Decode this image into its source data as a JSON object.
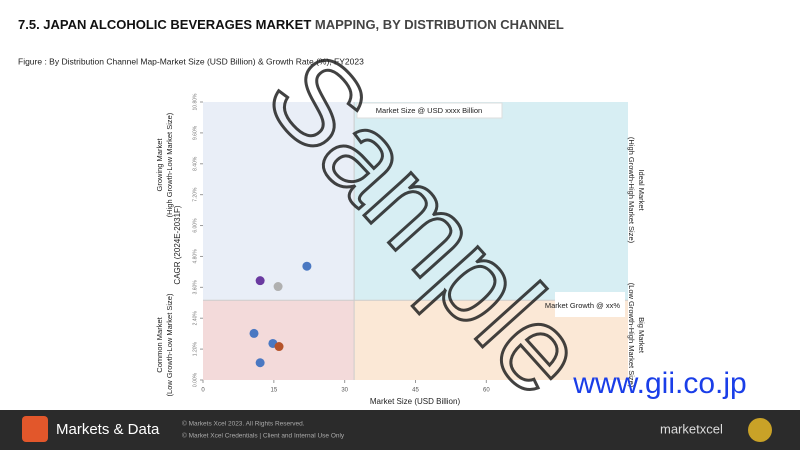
{
  "chart_data": {
    "type": "scatter",
    "title": "7.5. JAPAN ALCOHOLIC BEVERAGES MARKET",
    "title_rest": "MAPPING, BY DISTRIBUTION CHANNEL",
    "subtitle": "Figure : By Distribution Channel Map-Market Size (USD Billion) & Growth Rate (%), FY2023",
    "x_label": "Market Size (USD Billion)",
    "y_label": "CAGR (2024E-2031F)",
    "x": [
      12.1,
      22.0,
      15.9,
      10.8,
      14.8,
      16.1,
      12.1
    ],
    "y": [
      3.86,
      4.42,
      3.63,
      1.81,
      1.42,
      1.3,
      0.67
    ],
    "colors": [
      "#6a3aa0",
      "#4a78c2",
      "#b0b0b0",
      "#4a78c2",
      "#4a78c2",
      "#b5532a",
      "#4a78c2"
    ],
    "xlim": [
      0,
      90
    ],
    "xticks": [
      0,
      15,
      30,
      45,
      60
    ],
    "ylim": [
      0,
      10.8
    ],
    "yticks": [
      {
        "value": 0,
        "label": "0.00%"
      },
      {
        "value": 1.2,
        "label": "1.20%"
      },
      {
        "value": 2.4,
        "label": "2.40%"
      },
      {
        "value": 3.6,
        "label": "3.60%"
      },
      {
        "value": 4.8,
        "label": "4.80%"
      },
      {
        "value": 6,
        "label": "6.00%"
      },
      {
        "value": 7.2,
        "label": "7.20%"
      },
      {
        "value": 8.4,
        "label": "8.40%"
      },
      {
        "value": 9.6,
        "label": "9.60%"
      },
      {
        "value": 10.8,
        "label": "10.80%"
      }
    ],
    "x_split": 32,
    "y_split": 3.1,
    "quadrants": [
      "Growing Market (High Growth-Low Market Size)",
      "Ideal Market (High Growth-High Market Size)",
      "Common Market (Low Growth-Low Market Size)",
      "Big Market (Low Growth-High Market Size)"
    ],
    "size_callout": "Market Size @ USD xxxx Billion",
    "growth_callout": "Market Growth @ xx%"
  },
  "footer": {
    "brand": "Markets & Data",
    "copyright": "© Markets Xcel 2023. All Rights Reserved.",
    "credentials": "© Market Xcel Credentials | Client and Internal Use Only",
    "partner": "marketxcel"
  },
  "watermark": {
    "text": "Sample",
    "site": "www.gii.co.jp"
  }
}
